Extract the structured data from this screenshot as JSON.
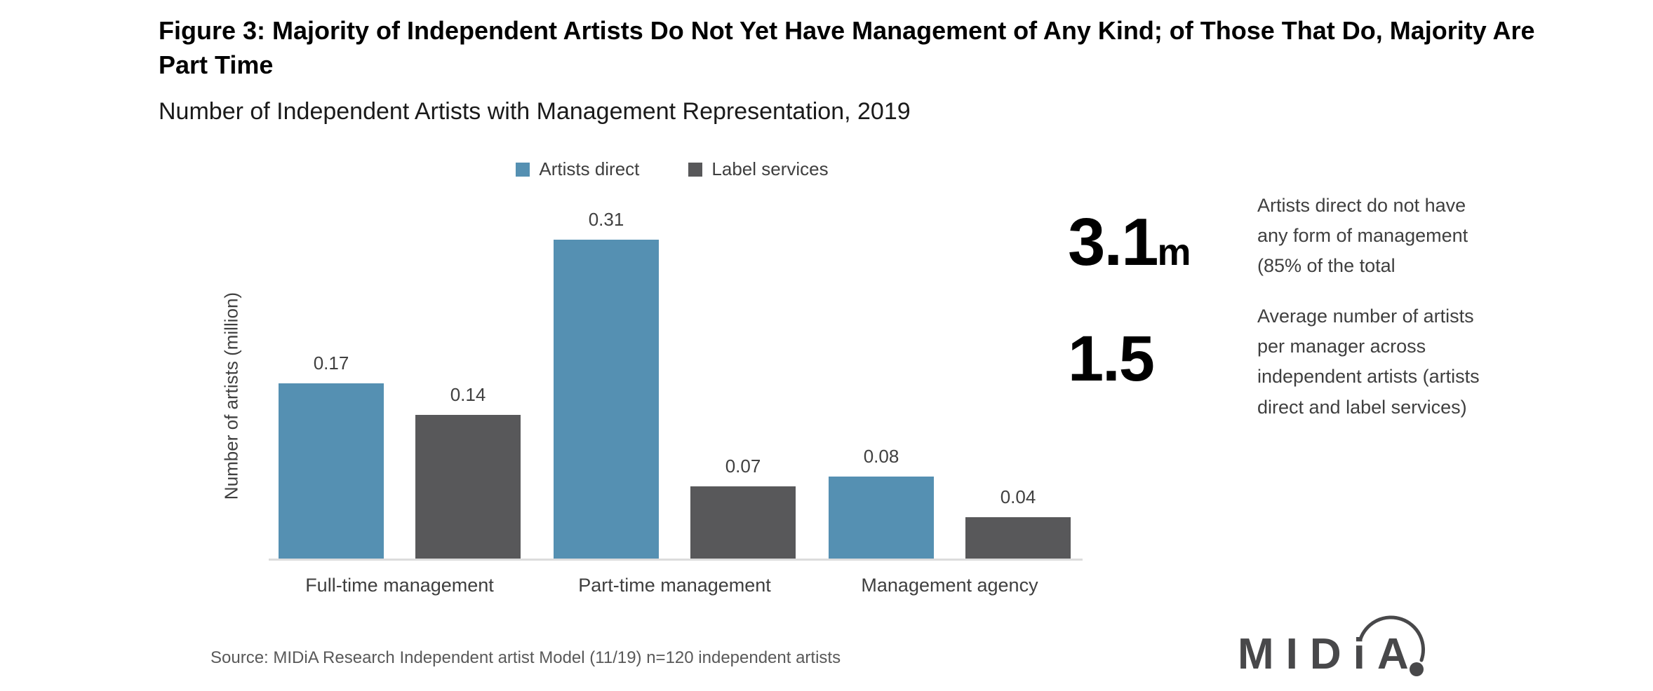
{
  "title": "Figure 3: Majority of Independent Artists Do Not Yet Have Management of Any Kind; of Those That Do, Majority Are Part Time",
  "subtitle": "Number of Independent Artists with Management Representation, 2019",
  "chart_data": {
    "type": "bar",
    "title": "Number of Independent Artists with Management Representation, 2019",
    "categories": [
      "Full-time management",
      "Part-time management",
      "Management agency"
    ],
    "series": [
      {
        "name": "Artists direct",
        "color": "#5590b2",
        "values": [
          0.17,
          0.31,
          0.08
        ]
      },
      {
        "name": "Label services",
        "color": "#58585a",
        "values": [
          0.14,
          0.07,
          0.04
        ]
      }
    ],
    "xlabel": "",
    "ylabel": "Number of artists (million)",
    "ylim": [
      0,
      0.31
    ],
    "grid": false,
    "data_labels": true,
    "legend_position": "top-center",
    "axis_line_color": "#dcdcdc"
  },
  "callouts": [
    {
      "value": "3.1",
      "unit": "m",
      "text": "Artists direct do not have any form of management (85% of the total"
    },
    {
      "value": "1.5",
      "unit": "",
      "text": "Average number of artists per manager across independent artists (artists direct and label services)"
    }
  ],
  "accent_color": "#5b93b8",
  "source": "Source: MIDiA Research Independent artist Model (11/19) n=120 independent artists",
  "logo": {
    "text": "MIDiA"
  }
}
